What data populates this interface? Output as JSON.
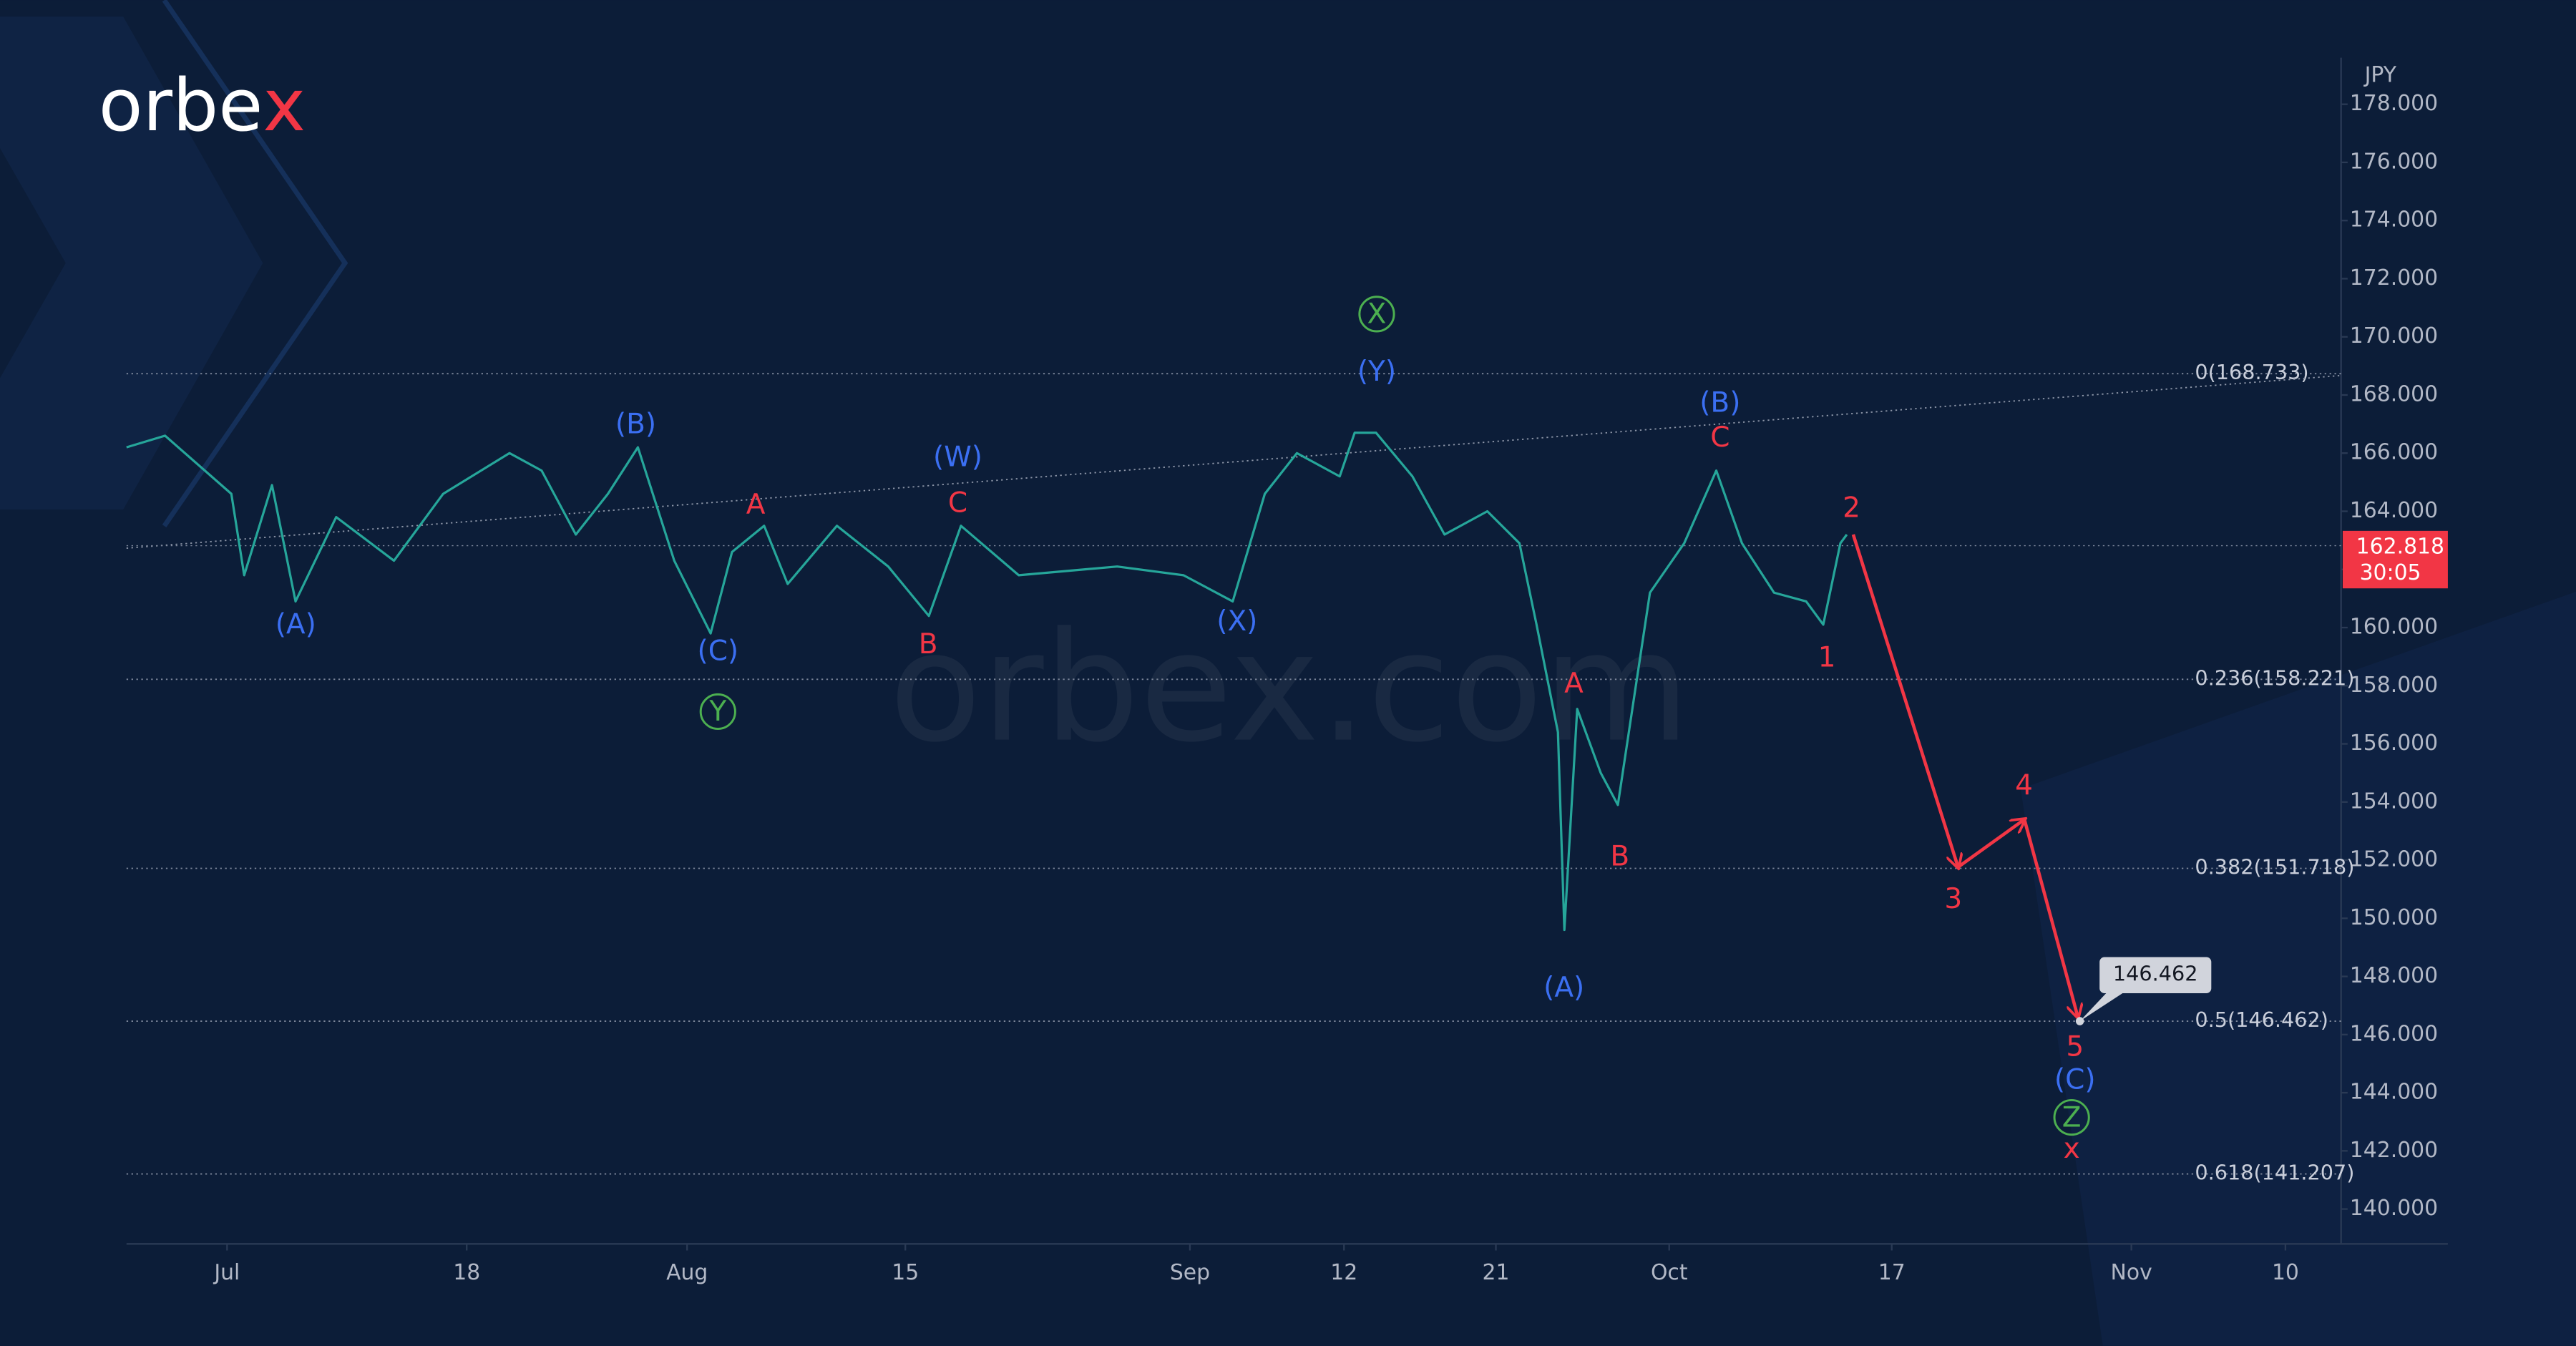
{
  "chart_data": {
    "type": "line",
    "logo": [
      "orbe",
      "x"
    ],
    "watermark": "orbex.com",
    "y_axis_label": "JPY",
    "xlim": [
      -4.7,
      98.8
    ],
    "ylim": [
      138.8,
      179.6
    ],
    "xticks": [
      {
        "value": 0,
        "label": "Jul"
      },
      {
        "value": 11.2,
        "label": "18"
      },
      {
        "value": 21.5,
        "label": "Aug"
      },
      {
        "value": 31.7,
        "label": "15"
      },
      {
        "value": 45,
        "label": "Sep"
      },
      {
        "value": 52.2,
        "label": "12"
      },
      {
        "value": 59.3,
        "label": "21"
      },
      {
        "value": 67.4,
        "label": "Oct"
      },
      {
        "value": 77.8,
        "label": "17"
      },
      {
        "value": 89,
        "label": "Nov"
      },
      {
        "value": 96.2,
        "label": "10"
      }
    ],
    "yticks": [
      {
        "value": 140,
        "label": "140.000"
      },
      {
        "value": 142,
        "label": "142.000"
      },
      {
        "value": 144,
        "label": "144.000"
      },
      {
        "value": 146,
        "label": "146.000"
      },
      {
        "value": 148,
        "label": "148.000"
      },
      {
        "value": 150,
        "label": "150.000"
      },
      {
        "value": 152,
        "label": "152.000"
      },
      {
        "value": 154,
        "label": "154.000"
      },
      {
        "value": 156,
        "label": "156.000"
      },
      {
        "value": 158,
        "label": "158.000"
      },
      {
        "value": 160,
        "label": "160.000"
      },
      {
        "value": 162,
        "label": "162.000"
      },
      {
        "value": 164,
        "label": "164.000"
      },
      {
        "value": 166,
        "label": "166.000"
      },
      {
        "value": 168,
        "label": "168.000"
      },
      {
        "value": 170,
        "label": "170.000"
      },
      {
        "value": 172,
        "label": "172.000"
      },
      {
        "value": 174,
        "label": "174.000"
      },
      {
        "value": 176,
        "label": "176.000"
      },
      {
        "value": 178,
        "label": "178.000"
      }
    ],
    "x": [
      -4.7,
      -2.9,
      0.2,
      0.8,
      2.1,
      3.2,
      5.1,
      7.8,
      10.1,
      13.2,
      14.7,
      16.3,
      17.8,
      19.2,
      20.9,
      22.6,
      23.6,
      25.1,
      26.2,
      28.5,
      30.9,
      32.8,
      34.3,
      37.0,
      41.6,
      44.7,
      47.0,
      48.5,
      50.0,
      52.0,
      52.7,
      53.7,
      55.4,
      56.9,
      58.9,
      60.4,
      61.2,
      62.2,
      62.5,
      63.1,
      64.2,
      65.0,
      65.8,
      66.5,
      68.1,
      69.6,
      70.8,
      72.3,
      73.8,
      74.6,
      75.4,
      75.7
    ],
    "series": [
      {
        "color": "#26a69a",
        "values": [
          166.2,
          166.6,
          164.6,
          161.8,
          164.9,
          160.9,
          163.8,
          162.3,
          164.6,
          166.0,
          165.4,
          163.2,
          164.6,
          166.2,
          162.3,
          159.8,
          162.6,
          163.5,
          161.5,
          163.5,
          162.1,
          160.4,
          163.5,
          161.8,
          162.1,
          161.8,
          160.9,
          164.6,
          166.0,
          165.2,
          166.7,
          166.7,
          165.2,
          163.2,
          164.0,
          162.9,
          160.1,
          156.4,
          149.6,
          157.2,
          155.0,
          153.9,
          157.8,
          161.2,
          162.9,
          165.4,
          162.9,
          161.2,
          160.9,
          160.1,
          162.9,
          163.2
        ]
      }
    ],
    "projection": {
      "color": "#f23645",
      "x": [
        76.0,
        80.9,
        84.0,
        86.5
      ],
      "values": [
        163.2,
        151.76,
        153.4,
        146.6
      ]
    },
    "trendline": {
      "x": [
        -4.7,
        98.8
      ],
      "values": [
        162.73,
        168.67
      ]
    },
    "fib_levels": [
      {
        "value": 168.733,
        "label": "0(168.733)"
      },
      {
        "value": 158.221,
        "label": "0.236(158.221)"
      },
      {
        "value": 151.718,
        "label": "0.382(151.718)"
      },
      {
        "value": 146.462,
        "label": "0.5(146.462)"
      },
      {
        "value": 141.207,
        "label": "0.618(141.207)"
      }
    ],
    "last_price": {
      "value": 162.818,
      "label": "162.818",
      "countdown": "30:05"
    },
    "target": {
      "value": 146.462,
      "label": "146.462"
    },
    "wave_labels": [
      {
        "text": "(A)",
        "color": "#3b6ff2"
      },
      {
        "text": "(B)",
        "color": "#3b6ff2"
      },
      {
        "text": "(C)",
        "color": "#3b6ff2"
      },
      {
        "text": "(W)",
        "color": "#3b6ff2"
      },
      {
        "text": "(X)",
        "color": "#3b6ff2"
      },
      {
        "text": "(Y)",
        "color": "#3b6ff2"
      },
      {
        "text": "(A)",
        "color": "#3b6ff2"
      },
      {
        "text": "(B)",
        "color": "#3b6ff2"
      },
      {
        "text": "(C)",
        "color": "#3b6ff2"
      },
      {
        "text": "A",
        "color": "#f23645"
      },
      {
        "text": "C",
        "color": "#f23645"
      },
      {
        "text": "B",
        "color": "#f23645"
      },
      {
        "text": "A",
        "color": "#f23645"
      },
      {
        "text": "B",
        "color": "#f23645"
      },
      {
        "text": "C",
        "color": "#f23645"
      },
      {
        "text": "1",
        "color": "#f23645"
      },
      {
        "text": "2",
        "color": "#f23645"
      },
      {
        "text": "3",
        "color": "#f23645"
      },
      {
        "text": "4",
        "color": "#f23645"
      },
      {
        "text": "5",
        "color": "#f23645"
      },
      {
        "text": "x",
        "color": "#f23645"
      },
      {
        "text": "Y",
        "color": "#4caf50",
        "circled": true
      },
      {
        "text": "X",
        "color": "#4caf50",
        "circled": true
      },
      {
        "text": "Z",
        "color": "#4caf50",
        "circled": true
      }
    ]
  }
}
